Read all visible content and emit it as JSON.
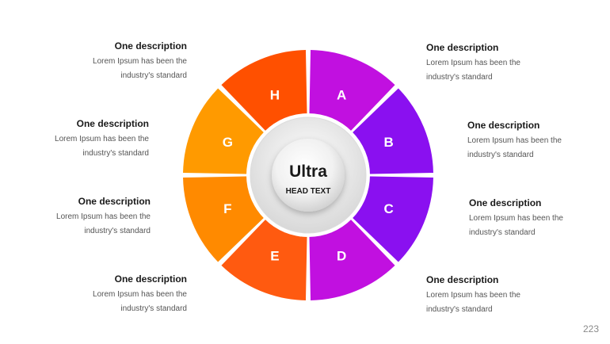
{
  "center": {
    "title": "Ultra",
    "subtitle": "HEAD TEXT"
  },
  "segments": [
    {
      "label": "A",
      "color": "#c110e0"
    },
    {
      "label": "B",
      "color": "#8a10f0"
    },
    {
      "label": "C",
      "color": "#8a10f0"
    },
    {
      "label": "D",
      "color": "#c110e0"
    },
    {
      "label": "E",
      "color": "#ff5a10"
    },
    {
      "label": "F",
      "color": "#ff8a00"
    },
    {
      "label": "G",
      "color": "#ff9a00"
    },
    {
      "label": "H",
      "color": "#ff5000"
    }
  ],
  "descriptions": {
    "left": [
      {
        "title": "One description",
        "line1": "Lorem Ipsum has been the",
        "line2": "industry's standard"
      },
      {
        "title": "One description",
        "line1": "Lorem Ipsum has been the",
        "line2": "industry's standard"
      },
      {
        "title": "One description",
        "line1": "Lorem Ipsum has been the",
        "line2": "industry's standard"
      },
      {
        "title": "One description",
        "line1": "Lorem Ipsum has been the",
        "line2": "industry's standard"
      }
    ],
    "right": [
      {
        "title": "One description",
        "line1": "Lorem Ipsum has been the",
        "line2": "industry's standard"
      },
      {
        "title": "One description",
        "line1": "Lorem Ipsum has been the",
        "line2": "industry's standard"
      },
      {
        "title": "One description",
        "line1": "Lorem Ipsum has been the",
        "line2": "industry's standard"
      },
      {
        "title": "One description",
        "line1": "Lorem Ipsum has been the",
        "line2": "industry's standard"
      }
    ]
  },
  "page_number": "223"
}
